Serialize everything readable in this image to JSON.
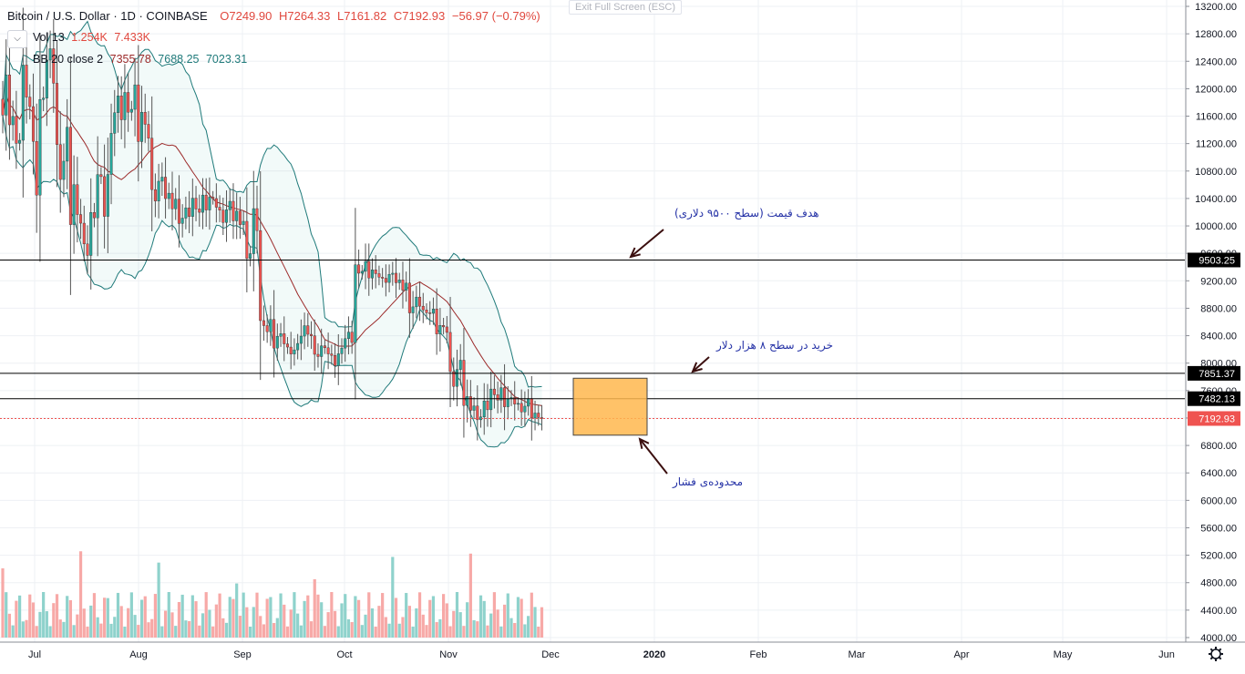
{
  "header": {
    "symbol": "Bitcoin / U.S. Dollar · 1D · COINBASE",
    "open": "O7249.90",
    "high": "H7264.33",
    "low": "L7161.82",
    "close": "C7192.93",
    "change": "−56.97 (−0.79%)",
    "exit_fullscreen": "Exit Full Screen (ESC)",
    "collapse_icon": "chevron-down-icon"
  },
  "vol_legend": {
    "label": "Vol 13",
    "v1": "1.254K",
    "v2": "7.433K"
  },
  "bb_legend": {
    "label": "BB 20 close 2",
    "v1": "7355.78",
    "v2": "7688.25",
    "v3": "7023.31"
  },
  "price_labels": [
    {
      "value": 9503.25,
      "text": "9503.25",
      "bg": "#000000"
    },
    {
      "value": 7851.37,
      "text": "7851.37",
      "bg": "#000000"
    },
    {
      "value": 7482.13,
      "text": "7482.13",
      "bg": "#000000"
    },
    {
      "value": 7192.93,
      "text": "7192.93",
      "bg": "#ef5350"
    }
  ],
  "annotations": [
    {
      "text": "هدف قیمت (سطح ۹۵۰۰ دلاری)"
    },
    {
      "text": "خرید در سطح ۸ هزار دلار"
    },
    {
      "text": "محدوده‌ی فشار"
    }
  ],
  "colors": {
    "up": "#26a69a",
    "down": "#ef5350",
    "vol_up": "#8fd2cc",
    "vol_down": "#f7a9a7",
    "bb_basis": "#9c2a2a",
    "bb_band": "#1f7a7a",
    "bb_fill": "rgba(38,166,154,0.06)",
    "box_fill": "#ffb74d",
    "grid": "#eef0f4",
    "annotation": "#2431a6"
  },
  "settings_icon": "gear-icon",
  "chart_data": {
    "type": "candlestick",
    "title": "Bitcoin / U.S. Dollar · 1D · COINBASE",
    "y_ticks": [
      13200,
      12800,
      12400,
      12000,
      11600,
      11200,
      10800,
      10400,
      10000,
      9600,
      9200,
      8800,
      8400,
      8000,
      7600,
      7200,
      6800,
      6400,
      6000,
      5600,
      5200,
      4800,
      4400,
      4000
    ],
    "x_ticks": [
      "Jul",
      "Aug",
      "Sep",
      "Oct",
      "Nov",
      "Dec",
      "2020",
      "Feb",
      "Mar",
      "Apr",
      "May",
      "Jun"
    ],
    "ylim": [
      4000,
      13200
    ],
    "horizontal_lines": [
      9503.25,
      7851.37,
      7482.13
    ],
    "last_price_line": 7192.93,
    "rectangle": {
      "x_from": "2019-12-08",
      "x_to": "2019-12-31",
      "y_from": 6950,
      "y_to": 7780
    },
    "series": [
      {
        "name": "Close",
        "segments": [
          [
            11000,
            12500
          ],
          [
            10800,
            12600
          ],
          [
            10000,
            12400
          ],
          [
            11800,
            12800
          ],
          [
            10500,
            11500
          ],
          [
            9700,
            10800
          ],
          [
            9400,
            10400
          ],
          [
            9900,
            11200
          ],
          [
            11300,
            12000
          ],
          [
            11500,
            12100
          ],
          [
            11100,
            11800
          ],
          [
            10300,
            10800
          ],
          [
            10150,
            10600
          ],
          [
            10000,
            10300
          ],
          [
            10100,
            10500
          ],
          [
            10200,
            10500
          ],
          [
            10000,
            10400
          ],
          [
            9900,
            10300
          ],
          [
            9300,
            10400
          ],
          [
            8400,
            8700
          ],
          [
            8200,
            8500
          ],
          [
            8100,
            8300
          ],
          [
            8300,
            8600
          ],
          [
            8050,
            8300
          ],
          [
            7900,
            8250
          ],
          [
            8200,
            8500
          ],
          [
            9250,
            9500
          ],
          [
            9200,
            9400
          ],
          [
            9150,
            9350
          ],
          [
            9000,
            9300
          ],
          [
            8700,
            9000
          ],
          [
            8700,
            8800
          ],
          [
            8400,
            8600
          ],
          [
            7600,
            8100
          ],
          [
            7200,
            7600
          ],
          [
            7100,
            7500
          ],
          [
            7400,
            7700
          ],
          [
            7350,
            7550
          ],
          [
            7250,
            7500
          ],
          [
            7150,
            7300
          ]
        ]
      }
    ]
  }
}
